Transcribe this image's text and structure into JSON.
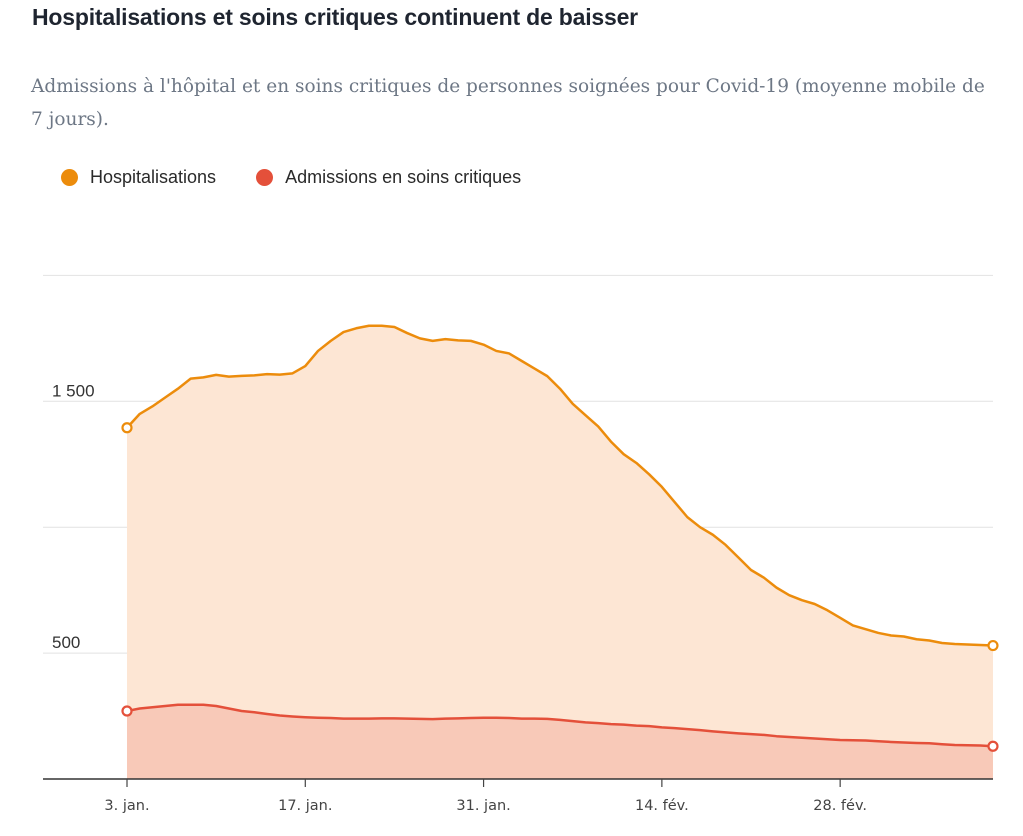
{
  "title": "Hospitalisations et soins critiques continuent de baisser",
  "subtitle": "Admissions à l'hôpital et en soins critiques de personnes soignées pour Covid-19 (moyenne mobile de 7 jours).",
  "legend": [
    {
      "label": "Hospitalisations",
      "color": "#ec8c0c"
    },
    {
      "label": "Admissions en soins critiques",
      "color": "#e4503a"
    }
  ],
  "chart_data": {
    "type": "area",
    "title": "Hospitalisations et soins critiques continuent de baisser",
    "subtitle": "Admissions à l'hôpital et en soins critiques de personnes soignées pour Covid-19 (moyenne mobile de 7 jours).",
    "x": [
      "2022-01-03",
      "2022-01-04",
      "2022-01-05",
      "2022-01-06",
      "2022-01-07",
      "2022-01-08",
      "2022-01-09",
      "2022-01-10",
      "2022-01-11",
      "2022-01-12",
      "2022-01-13",
      "2022-01-14",
      "2022-01-15",
      "2022-01-16",
      "2022-01-17",
      "2022-01-18",
      "2022-01-19",
      "2022-01-20",
      "2022-01-21",
      "2022-01-22",
      "2022-01-23",
      "2022-01-24",
      "2022-01-25",
      "2022-01-26",
      "2022-01-27",
      "2022-01-28",
      "2022-01-29",
      "2022-01-30",
      "2022-01-31",
      "2022-02-01",
      "2022-02-02",
      "2022-02-03",
      "2022-02-04",
      "2022-02-05",
      "2022-02-06",
      "2022-02-07",
      "2022-02-08",
      "2022-02-09",
      "2022-02-10",
      "2022-02-11",
      "2022-02-12",
      "2022-02-13",
      "2022-02-14",
      "2022-02-15",
      "2022-02-16",
      "2022-02-17",
      "2022-02-18",
      "2022-02-19",
      "2022-02-20",
      "2022-02-21",
      "2022-02-22",
      "2022-02-23",
      "2022-02-24",
      "2022-02-25",
      "2022-02-26",
      "2022-02-27",
      "2022-02-28",
      "2022-03-01",
      "2022-03-02",
      "2022-03-03",
      "2022-03-04",
      "2022-03-05",
      "2022-03-06",
      "2022-03-07",
      "2022-03-08",
      "2022-03-09",
      "2022-03-10",
      "2022-03-11",
      "2022-03-12"
    ],
    "series": [
      {
        "name": "Hospitalisations",
        "color": "#ec8c0c",
        "fill": "#fde6d4",
        "values": [
          1395,
          1450,
          1480,
          1515,
          1550,
          1590,
          1595,
          1605,
          1598,
          1601,
          1603,
          1608,
          1606,
          1611,
          1640,
          1700,
          1740,
          1775,
          1790,
          1800,
          1800,
          1795,
          1771,
          1750,
          1740,
          1747,
          1742,
          1740,
          1725,
          1700,
          1690,
          1660,
          1630,
          1600,
          1550,
          1490,
          1445,
          1400,
          1340,
          1290,
          1255,
          1210,
          1160,
          1100,
          1040,
          1000,
          970,
          930,
          880,
          830,
          800,
          760,
          730,
          710,
          695,
          670,
          640,
          610,
          595,
          580,
          570,
          566,
          555,
          550,
          540,
          536,
          534,
          532,
          530
        ]
      },
      {
        "name": "Admissions en soins critiques",
        "color": "#e4503a",
        "fill": "#f8c9b8",
        "values": [
          270,
          280,
          285,
          290,
          295,
          295,
          295,
          290,
          280,
          270,
          265,
          258,
          252,
          248,
          245,
          243,
          242,
          240,
          240,
          240,
          241,
          241,
          240,
          239,
          238,
          240,
          241,
          242,
          243,
          243,
          242,
          240,
          240,
          239,
          235,
          230,
          225,
          222,
          218,
          216,
          212,
          210,
          205,
          202,
          198,
          194,
          189,
          185,
          181,
          178,
          175,
          170,
          167,
          164,
          161,
          158,
          155,
          154,
          153,
          150,
          147,
          145,
          143,
          142,
          138,
          135,
          134,
          133,
          130
        ]
      }
    ],
    "xticks": [
      "3. jan.",
      "17. jan.",
      "31. jan.",
      "14. fév.",
      "28. fév."
    ],
    "yticks": [
      500,
      1500
    ],
    "ytick_labels": [
      "500",
      "1 500"
    ],
    "ylim": [
      0,
      2000
    ],
    "grid": true,
    "legend_position": "top-left",
    "xlabel": "",
    "ylabel": ""
  }
}
